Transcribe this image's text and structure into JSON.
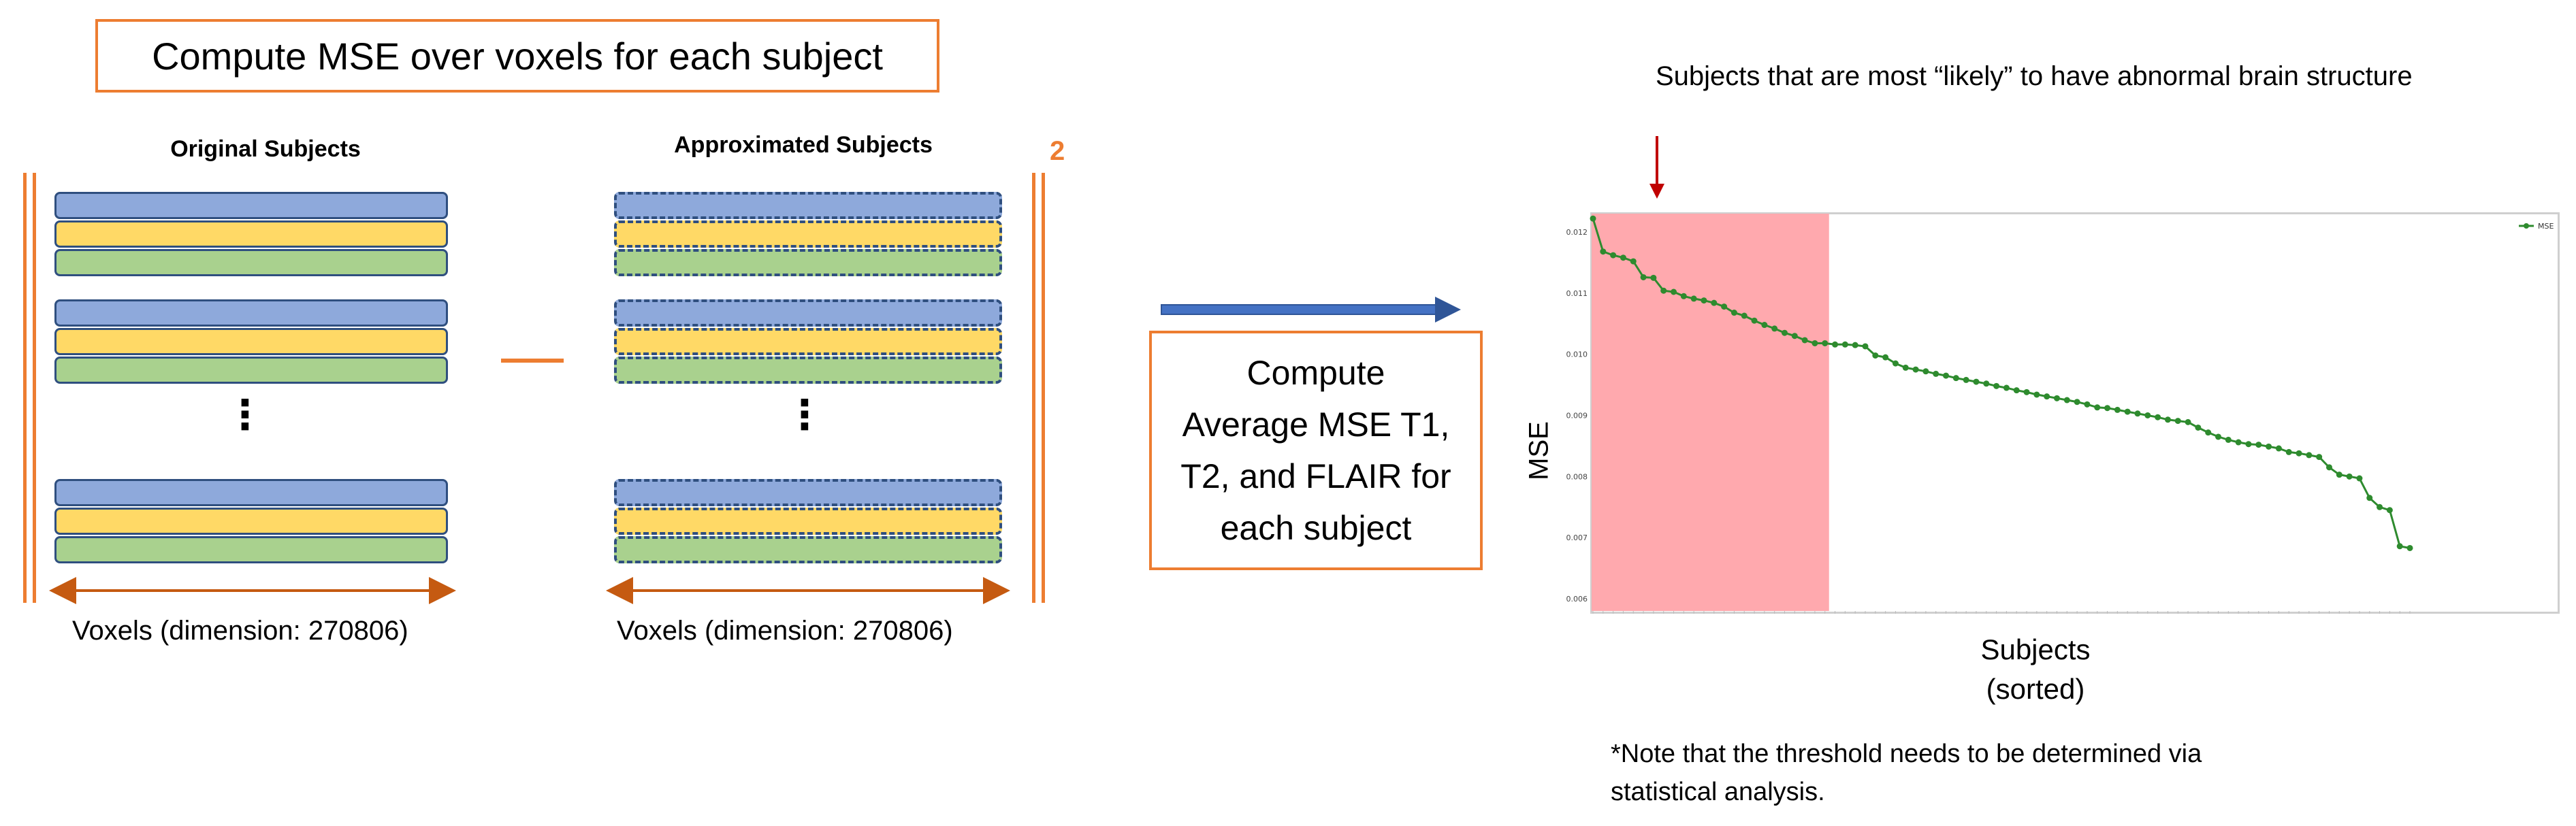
{
  "header": {
    "title": "Compute MSE over voxels for each subject"
  },
  "left_panel": {
    "original_title": "Original Subjects",
    "approx_title": "Approximated Subjects",
    "minus_sign": "—",
    "exponent": "2",
    "vdots": "⋮",
    "original_voxels_label": "Voxels (dimension: 270806)",
    "approx_voxels_label": "Voxels (dimension: 270806)"
  },
  "middle": {
    "compute_lines": [
      "Compute",
      "Average MSE T1,",
      "T2, and FLAIR for",
      "each subject"
    ]
  },
  "right_panel": {
    "annotation": "Subjects that are most “likely” to have abnormal brain structure",
    "note_lines": [
      "*Note that the threshold needs to be determined via",
      "statistical analysis."
    ]
  },
  "colors": {
    "accent_orange": "#ED7D31",
    "bar_blue": "#8EA9DB",
    "bar_yellow": "#FFD966",
    "bar_green": "#A9D18E",
    "bar_border": "#2F4F7F",
    "arrow_blue": "#2F5597",
    "arrow_red": "#C00000",
    "line_green": "#2E8B2E",
    "highlight_red": "#FFA9AE"
  },
  "chart_data": {
    "type": "line",
    "title": "",
    "xlabel": "Subjects\n(sorted)",
    "ylabel": "MSE",
    "ylim": [
      0.0058,
      0.0123
    ],
    "yticks": [
      "0.012",
      "0.011",
      "0.010",
      "0.009",
      "0.008",
      "0.007",
      "0.006"
    ],
    "legend": {
      "position": "top-right",
      "entries": [
        "MSE"
      ]
    },
    "highlight_region": {
      "x_start": 0,
      "x_end": 23
    },
    "series": [
      {
        "name": "MSE",
        "values": [
          0.01222,
          0.01168,
          0.01162,
          0.01158,
          0.01152,
          0.01126,
          0.01125,
          0.01104,
          0.01102,
          0.01095,
          0.01091,
          0.01088,
          0.01084,
          0.01078,
          0.01068,
          0.01063,
          0.01055,
          0.01048,
          0.01042,
          0.01035,
          0.0103,
          0.01023,
          0.01018,
          0.01018,
          0.01016,
          0.01016,
          0.01015,
          0.01013,
          0.00998,
          0.00995,
          0.00985,
          0.00978,
          0.00975,
          0.00972,
          0.00968,
          0.00965,
          0.00961,
          0.00958,
          0.00955,
          0.00952,
          0.00948,
          0.00945,
          0.00941,
          0.00938,
          0.00934,
          0.00931,
          0.00928,
          0.00925,
          0.00922,
          0.00918,
          0.00913,
          0.00912,
          0.00909,
          0.00906,
          0.00903,
          0.009,
          0.00897,
          0.00893,
          0.00891,
          0.00889,
          0.0088,
          0.00872,
          0.00865,
          0.0086,
          0.00856,
          0.00853,
          0.00852,
          0.00849,
          0.00846,
          0.0084,
          0.00838,
          0.00835,
          0.00832,
          0.00815,
          0.00803,
          0.008,
          0.00797,
          0.00765,
          0.0075,
          0.00745,
          0.00686,
          0.00683
        ]
      }
    ]
  }
}
